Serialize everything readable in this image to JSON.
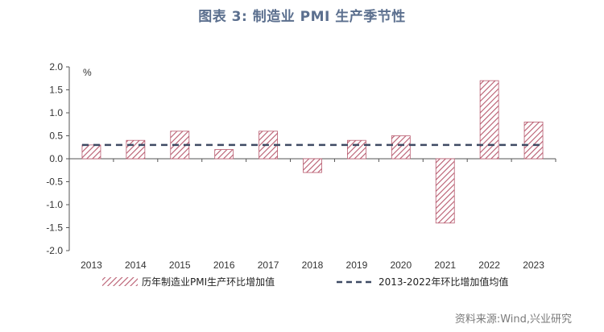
{
  "title": "图表 3:    制造业 PMI 生产季节性",
  "source": "资料来源:Wind,兴业研究",
  "colors": {
    "title": "#5b6f8e",
    "bar": "#b85a6e",
    "avg_line": "#3e4a63",
    "axis": "#555555"
  },
  "chart_data": {
    "type": "bar",
    "categories": [
      "2013",
      "2014",
      "2015",
      "2016",
      "2017",
      "2018",
      "2019",
      "2020",
      "2021",
      "2022",
      "2023"
    ],
    "series": [
      {
        "name": "历年制造业PMI生产环比增加值",
        "values": [
          0.3,
          0.4,
          0.6,
          0.2,
          0.6,
          -0.3,
          0.4,
          0.5,
          -1.4,
          1.7,
          0.8
        ]
      }
    ],
    "average": {
      "name": "2013-2022年环比增加值均值",
      "value": 0.3
    },
    "yunit": "%",
    "ylim": [
      -2.0,
      2.0
    ],
    "yticks": [
      "2.0",
      "1.5",
      "1.0",
      "0.5",
      "0.0",
      "-0.5",
      "-1.0",
      "-1.5",
      "-2.0"
    ],
    "grid": false,
    "legend": "bottom"
  }
}
